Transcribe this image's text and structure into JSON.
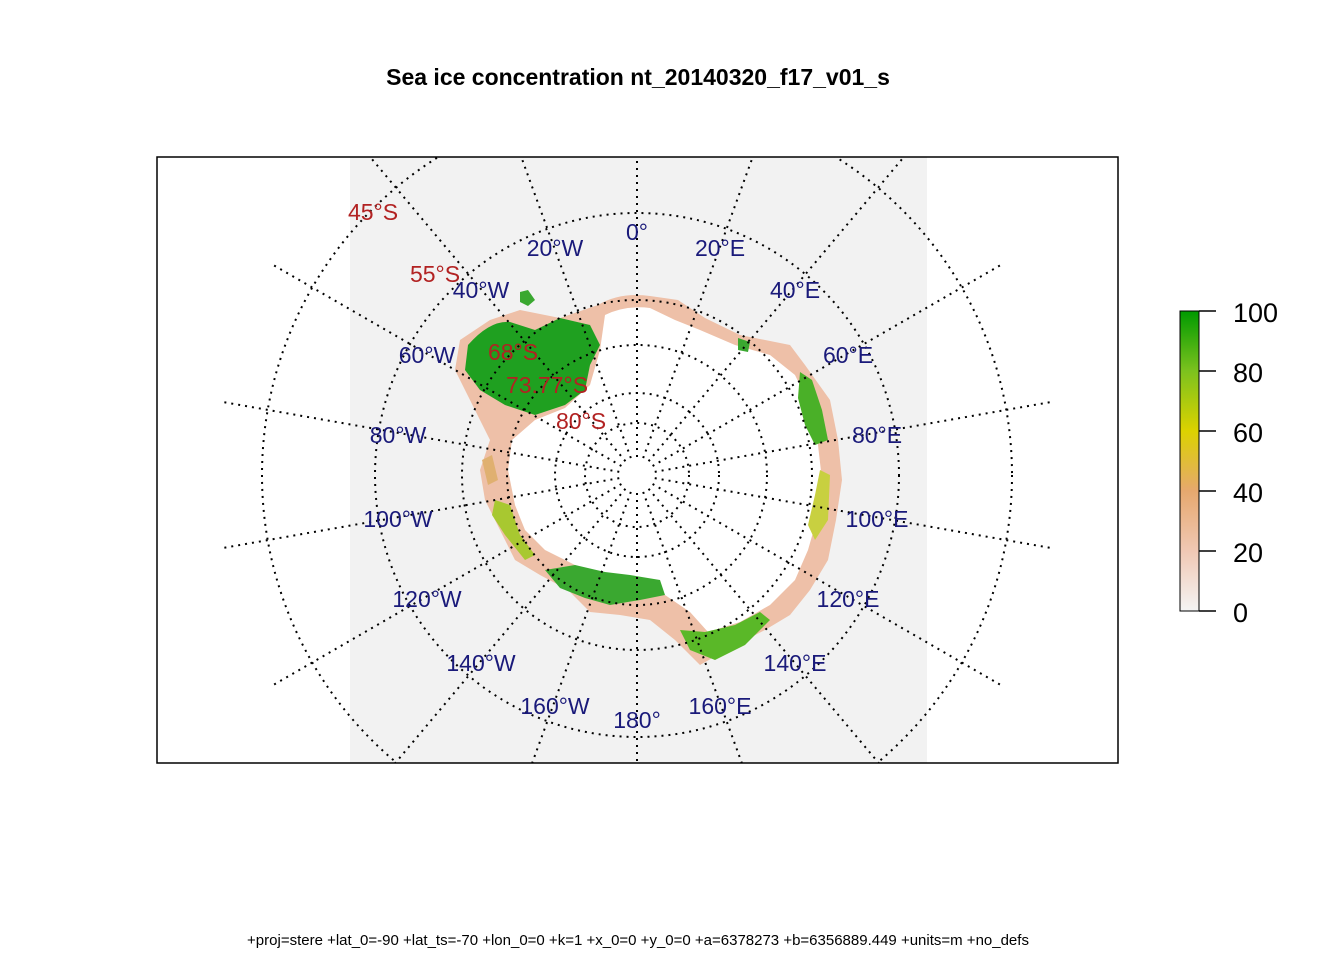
{
  "title": "Sea ice concentration nt_20140320_f17_v01_s",
  "projection_note": "+proj=stere +lat_0=-90 +lat_ts=-70 +lon_0=0 +k=1 +x_0=0 +y_0=0 +a=6378273 +b=6356889.449 +units=m +no_defs",
  "latitude_labels": [
    "45°S",
    "55°S",
    "68°S",
    "73.77°S",
    "80°S"
  ],
  "longitude_labels": [
    "0°",
    "20°E",
    "40°E",
    "60°E",
    "80°E",
    "100°E",
    "120°E",
    "140°E",
    "160°E",
    "180°",
    "160°W",
    "140°W",
    "120°W",
    "100°W",
    "80°W",
    "60°W",
    "40°W",
    "20°W"
  ],
  "legend": {
    "ticks": [
      "0",
      "20",
      "40",
      "60",
      "80",
      "100"
    ],
    "range": [
      0,
      100
    ],
    "colors": [
      "#f2f2f2",
      "#f0c8b4",
      "#e6a06e",
      "#dcd200",
      "#8cc81e",
      "#00a000"
    ]
  },
  "colors": {
    "lat_label": "#b22222",
    "lon_label": "#1a1a7a",
    "background_fill": "#f2f2f2",
    "land": "#ffffff"
  }
}
